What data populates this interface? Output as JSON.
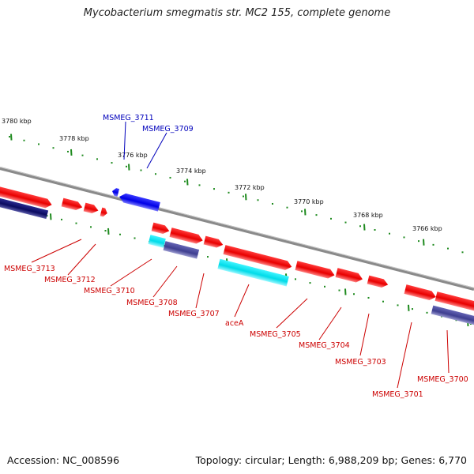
{
  "title": "Mycobacterium smegmatis str. MC2 155, complete genome",
  "footer": {
    "accession": "Accession: NC_008596",
    "summary": "Topology: circular; Length: 6,988,209 bp; Genes: 6,770"
  },
  "colors": {
    "backbone": "#8a8a8a",
    "forward_gene": "#ff0000",
    "reverse_gene": "#0000ee",
    "cyan_gene": "#00e5f0",
    "purple_gene": "#4a4a9a",
    "navy_gene": "#10106a",
    "tick": "#1e8a1e",
    "red_label": "#cc0000",
    "blue_label": "#0000bb"
  },
  "scale": {
    "labels": [
      "3780 kbp",
      "3778 kbp",
      "3776 kbp",
      "3774 kbp",
      "3772 kbp",
      "3770 kbp",
      "3768 kbp",
      "3766 kbp"
    ]
  },
  "gene_labels_top": [
    "MSMEG_3711",
    "MSMEG_3709"
  ],
  "gene_labels_bottom": [
    "MSMEG_3713",
    "MSMEG_3712",
    "MSMEG_3710",
    "MSMEG_3708",
    "MSMEG_3707",
    "aceA",
    "MSMEG_3705",
    "MSMEG_3704",
    "MSMEG_3703",
    "MSMEG_3701",
    "MSMEG_3700"
  ]
}
